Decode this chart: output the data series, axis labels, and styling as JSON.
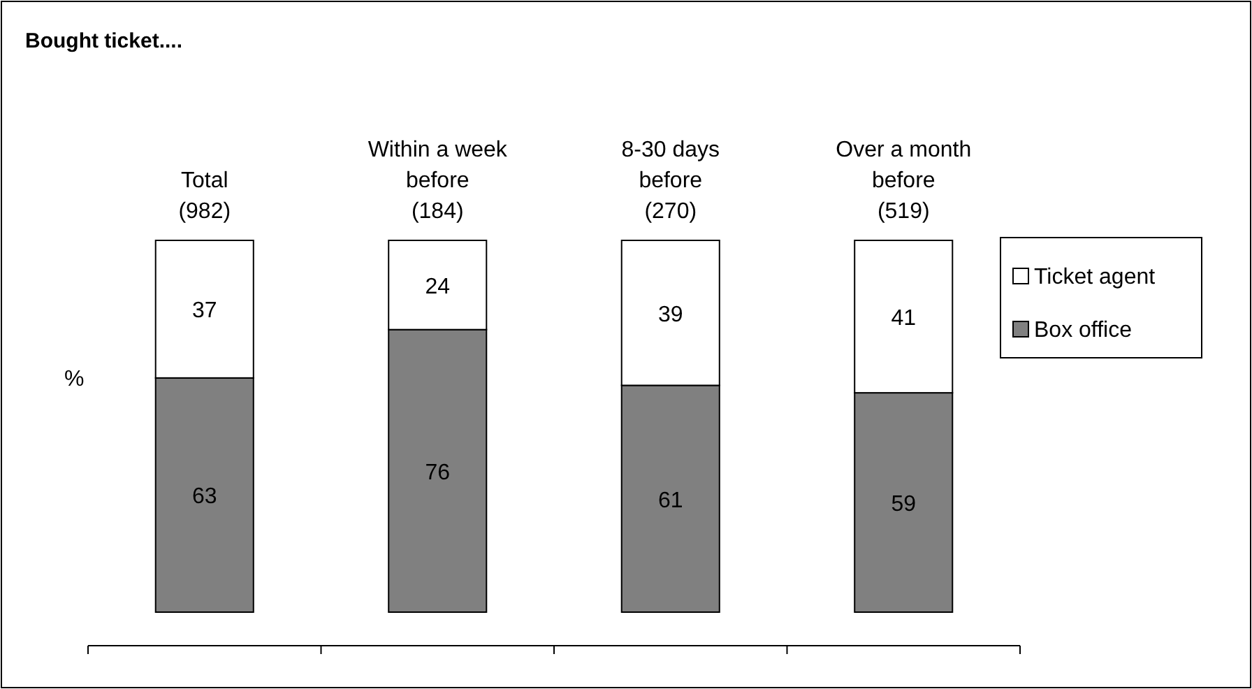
{
  "chart_data": {
    "type": "bar",
    "title": "Bought ticket....",
    "ylabel": "%",
    "categories": [
      "Total\n(982)",
      "Within a week\nbefore\n(184)",
      "8-30 days\nbefore\n(270)",
      "Over a month\nbefore\n(519)"
    ],
    "series": [
      {
        "name": "Box office",
        "color": "#808080",
        "values": [
          63,
          76,
          61,
          59
        ]
      },
      {
        "name": "Ticket agent",
        "color": "#ffffff",
        "values": [
          37,
          24,
          39,
          41
        ]
      }
    ],
    "stacked": true,
    "data_labels": true,
    "legend": "right"
  }
}
